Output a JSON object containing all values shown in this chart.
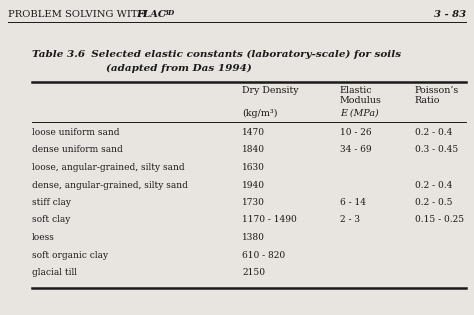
{
  "page_number": "3 - 83",
  "table_number": "Table 3.6",
  "table_title": "  Selected elastic constants (laboratory-scale) for soils",
  "table_subtitle": "(adapted from Das 1994)",
  "col1_header1": "Dry Density",
  "col2_header1": "Elastic",
  "col2_header2": "Modulus",
  "col3_header1": "Poisson’s",
  "col3_header2": "Ratio",
  "col1_unit": "(kg/m³)",
  "col2_unit": "E (MPa)",
  "rows": [
    [
      "loose uniform sand",
      "1470",
      "10 - 26",
      "0.2 - 0.4"
    ],
    [
      "dense uniform sand",
      "1840",
      "34 - 69",
      "0.3 - 0.45"
    ],
    [
      "loose, angular-grained, silty sand",
      "1630",
      "",
      ""
    ],
    [
      "dense, angular-grained, silty sand",
      "1940",
      "",
      "0.2 - 0.4"
    ],
    [
      "stiff clay",
      "1730",
      "6 - 14",
      "0.2 - 0.5"
    ],
    [
      "soft clay",
      "1170 - 1490",
      "2 - 3",
      "0.15 - 0.25"
    ],
    [
      "loess",
      "1380",
      "",
      ""
    ],
    [
      "soft organic clay",
      "610 - 820",
      "",
      ""
    ],
    [
      "glacial till",
      "2150",
      "",
      ""
    ]
  ],
  "bg_color": "#e8e4df",
  "text_color": "#1a1a1a",
  "header_fs": 7.2,
  "title_fs": 7.5,
  "col_header_fs": 6.8,
  "data_fs": 6.5
}
